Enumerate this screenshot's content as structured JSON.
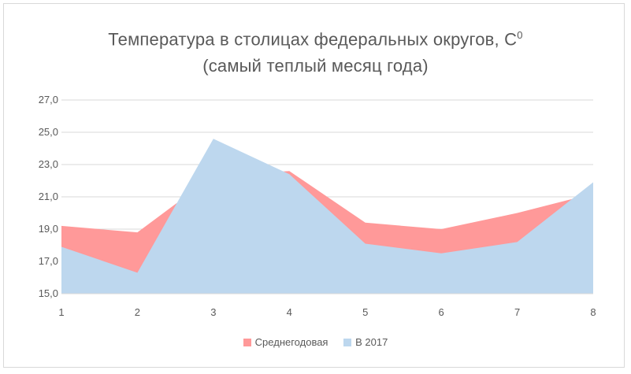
{
  "chart_data": {
    "type": "area",
    "title_line1": "Температура в столицах федеральных округов, С",
    "title_sup": "0",
    "title_line2": "(самый теплый месяц года)",
    "x": [
      "1",
      "2",
      "3",
      "4",
      "5",
      "6",
      "7",
      "8"
    ],
    "ylim": [
      15,
      27
    ],
    "yticks": [
      "15,0",
      "17,0",
      "19,0",
      "21,0",
      "23,0",
      "25,0",
      "27,0"
    ],
    "grid": true,
    "legend_position": "bottom",
    "series": [
      {
        "name": "Среднегодовая",
        "color": "#ff9999",
        "values": [
          19.2,
          18.8,
          22.3,
          22.6,
          19.4,
          19.0,
          20.0,
          21.2
        ]
      },
      {
        "name": "В 2017",
        "color": "#bdd7ee",
        "values": [
          17.9,
          16.3,
          24.6,
          22.4,
          18.1,
          17.5,
          18.2,
          21.9
        ]
      }
    ]
  }
}
